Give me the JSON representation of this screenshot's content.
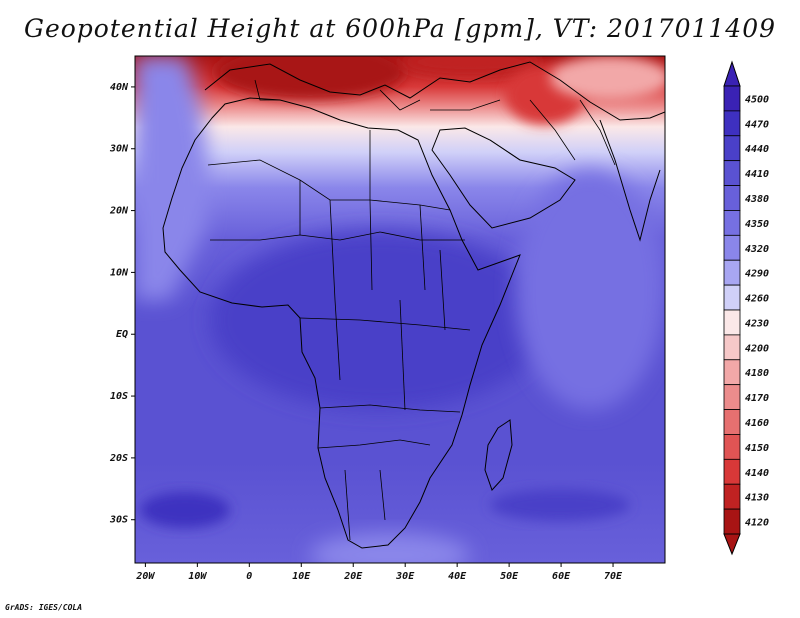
{
  "title": "Geopotential Height at 600hPa [gpm], VT: 2017011409",
  "credit": "GrADS: IGES/COLA",
  "map": {
    "lon_range": [
      -22,
      80
    ],
    "lat_range": [
      -37,
      45
    ],
    "x_tick_labels": [
      "20W",
      "10W",
      "0",
      "10E",
      "20E",
      "30E",
      "40E",
      "50E",
      "60E",
      "70E"
    ],
    "x_tick_lons": [
      -20,
      -10,
      0,
      10,
      20,
      30,
      40,
      50,
      60,
      70
    ],
    "y_tick_labels": [
      "40N",
      "30N",
      "20N",
      "10N",
      "EQ",
      "10S",
      "20S",
      "30S"
    ],
    "y_tick_lats": [
      40,
      30,
      20,
      10,
      0,
      -10,
      -20,
      -30
    ]
  },
  "colorbar": {
    "levels": [
      "4500",
      "4470",
      "4440",
      "4410",
      "4380",
      "4350",
      "4320",
      "4290",
      "4260",
      "4230",
      "4200",
      "4180",
      "4170",
      "4160",
      "4150",
      "4140",
      "4130",
      "4120"
    ],
    "colors": [
      "#3a22b4",
      "#3e30c0",
      "#4a40c8",
      "#5a52d2",
      "#6860da",
      "#7670e2",
      "#8a86ea",
      "#a8a6f2",
      "#d0d0f8",
      "#fbe8e8",
      "#f6c8c8",
      "#f2a8a8",
      "#ec8c8c",
      "#e67070",
      "#e05454",
      "#d83838",
      "#c02222",
      "#a81414"
    ]
  }
}
